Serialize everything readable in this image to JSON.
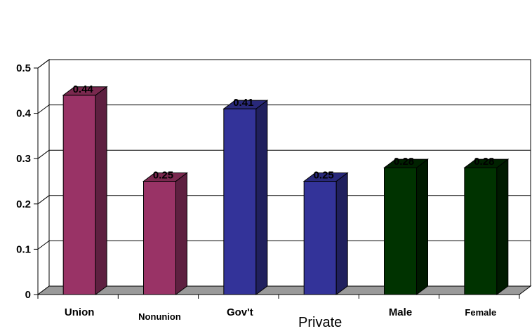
{
  "chart_data": {
    "type": "bar",
    "style": "3d-column",
    "categories": [
      "Union",
      "Nonunion",
      "Gov't",
      "Private",
      "Male",
      "Female"
    ],
    "values": [
      0.44,
      0.25,
      0.41,
      0.25,
      0.28,
      0.28
    ],
    "data_labels": [
      "0.44",
      "0.25",
      "0.41",
      "0.25",
      "0.28",
      "0.28"
    ],
    "bar_colors": [
      "#993366",
      "#993366",
      "#333399",
      "#333399",
      "#003300",
      "#003300"
    ],
    "side_colors": [
      "#5e2040",
      "#5e2040",
      "#20205e",
      "#20205e",
      "#001a00",
      "#001a00"
    ],
    "top_colors": [
      "#7a294f",
      "#7a294f",
      "#29297a",
      "#29297a",
      "#002200",
      "#002200"
    ],
    "ylim": [
      0,
      0.5
    ],
    "yticks": [
      0,
      0.1,
      0.2,
      0.3,
      0.4,
      0.5
    ],
    "ytick_labels": [
      "0",
      "0.1",
      "0.2",
      "0.3",
      "0.4",
      "0.5"
    ],
    "grid": true,
    "title": "",
    "xlabel": "",
    "ylabel": ""
  }
}
